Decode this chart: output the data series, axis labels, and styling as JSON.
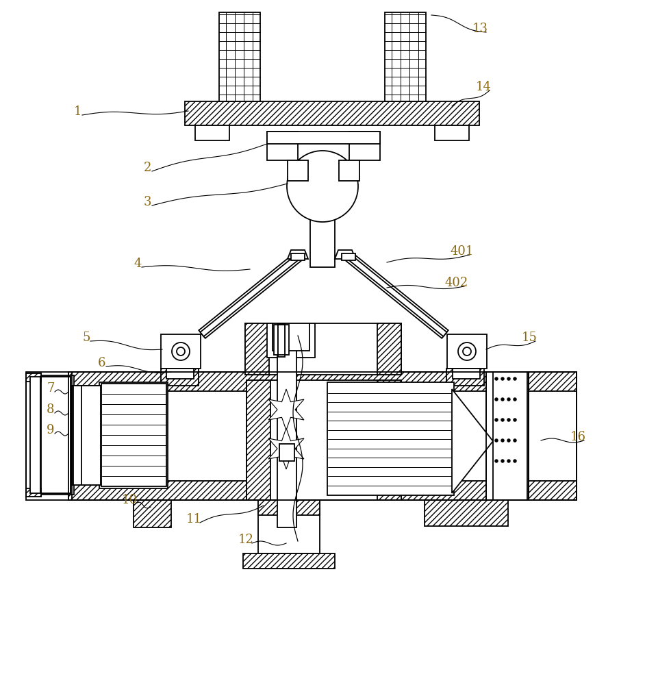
{
  "bg_color": "#ffffff",
  "label_color": "#8B6914",
  "figsize": [
    9.42,
    10.0
  ],
  "dpi": 100,
  "labels": [
    [
      "1",
      108,
      168
    ],
    [
      "2",
      210,
      250
    ],
    [
      "3",
      210,
      300
    ],
    [
      "4",
      195,
      390
    ],
    [
      "5",
      120,
      498
    ],
    [
      "6",
      143,
      535
    ],
    [
      "7",
      68,
      572
    ],
    [
      "8",
      68,
      603
    ],
    [
      "9",
      68,
      633
    ],
    [
      "10",
      178,
      735
    ],
    [
      "11",
      272,
      763
    ],
    [
      "12",
      348,
      793
    ],
    [
      "13",
      690,
      47
    ],
    [
      "14",
      695,
      132
    ],
    [
      "15",
      762,
      498
    ],
    [
      "16",
      833,
      643
    ],
    [
      "401",
      658,
      372
    ],
    [
      "402",
      650,
      418
    ]
  ]
}
